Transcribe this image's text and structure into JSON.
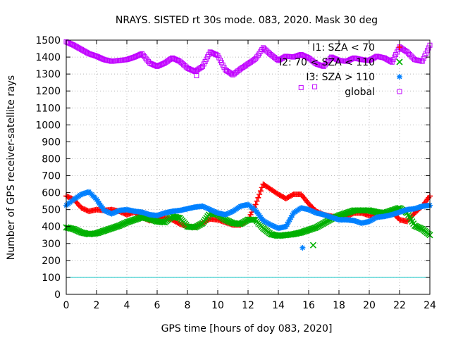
{
  "chart_data": {
    "type": "scatter",
    "title": "NRAYS. SISTED rt 30s mode. 083, 2020. Mask 30 deg",
    "xlabel": "GPS time [hours of doy 083, 2020]",
    "ylabel": "Number of GPS receiver-satellite rays",
    "xlim": [
      0,
      24
    ],
    "ylim": [
      0,
      1500
    ],
    "xticks": [
      0,
      2,
      4,
      6,
      8,
      10,
      12,
      14,
      16,
      18,
      20,
      22,
      24
    ],
    "yticks": [
      0,
      100,
      200,
      300,
      400,
      500,
      600,
      700,
      800,
      900,
      1000,
      1100,
      1200,
      1300,
      1400,
      1500
    ],
    "grid": true,
    "legend_position": "top-right",
    "reference_line": {
      "y": 100,
      "color": "#00c0c0"
    },
    "series": [
      {
        "name": "I1: SZA < 70",
        "marker": "plus",
        "color": "#ff0000",
        "points": [
          [
            0,
            580
          ],
          [
            0.5,
            560
          ],
          [
            1,
            510
          ],
          [
            1.5,
            490
          ],
          [
            2,
            500
          ],
          [
            2.5,
            495
          ],
          [
            3,
            500
          ],
          [
            3.5,
            490
          ],
          [
            4,
            470
          ],
          [
            4.5,
            485
          ],
          [
            5,
            455
          ],
          [
            5.5,
            435
          ],
          [
            6,
            445
          ],
          [
            6.5,
            455
          ],
          [
            7,
            440
          ],
          [
            7.5,
            415
          ],
          [
            8,
            400
          ],
          [
            8.5,
            395
          ],
          [
            9,
            420
          ],
          [
            9.5,
            445
          ],
          [
            10,
            440
          ],
          [
            10.5,
            425
          ],
          [
            11,
            410
          ],
          [
            11.5,
            410
          ],
          [
            12,
            440
          ],
          [
            12.5,
            530
          ],
          [
            13,
            650
          ],
          [
            13.5,
            620
          ],
          [
            14,
            590
          ],
          [
            14.5,
            565
          ],
          [
            15,
            590
          ],
          [
            15.5,
            590
          ],
          [
            16,
            535
          ],
          [
            16.5,
            490
          ],
          [
            17,
            470
          ],
          [
            17.5,
            460
          ],
          [
            18,
            455
          ],
          [
            18.5,
            460
          ],
          [
            19,
            480
          ],
          [
            19.5,
            480
          ],
          [
            20,
            465
          ],
          [
            20.5,
            470
          ],
          [
            21,
            470
          ],
          [
            21.5,
            490
          ],
          [
            22,
            440
          ],
          [
            22.5,
            430
          ],
          [
            23,
            480
          ],
          [
            23.5,
            520
          ],
          [
            24,
            580
          ]
        ]
      },
      {
        "name": "I2: 70 < SZA < 110",
        "marker": "x",
        "color": "#00b000",
        "points": [
          [
            0,
            395
          ],
          [
            0.5,
            385
          ],
          [
            1,
            365
          ],
          [
            1.5,
            355
          ],
          [
            2,
            360
          ],
          [
            2.5,
            375
          ],
          [
            3,
            390
          ],
          [
            3.5,
            405
          ],
          [
            4,
            425
          ],
          [
            4.5,
            440
          ],
          [
            5,
            455
          ],
          [
            5.5,
            445
          ],
          [
            6,
            430
          ],
          [
            6.5,
            425
          ],
          [
            7,
            460
          ],
          [
            7.5,
            450
          ],
          [
            8,
            400
          ],
          [
            8.5,
            395
          ],
          [
            9,
            420
          ],
          [
            9.5,
            480
          ],
          [
            10,
            470
          ],
          [
            10.5,
            440
          ],
          [
            11,
            420
          ],
          [
            11.5,
            415
          ],
          [
            12,
            440
          ],
          [
            12.5,
            440
          ],
          [
            13,
            390
          ],
          [
            13.5,
            355
          ],
          [
            14,
            345
          ],
          [
            14.5,
            350
          ],
          [
            15,
            355
          ],
          [
            15.5,
            365
          ],
          [
            16,
            380
          ],
          [
            16.5,
            395
          ],
          [
            17,
            420
          ],
          [
            17.5,
            445
          ],
          [
            18,
            465
          ],
          [
            18.5,
            480
          ],
          [
            19,
            495
          ],
          [
            19.5,
            495
          ],
          [
            20,
            495
          ],
          [
            20.5,
            485
          ],
          [
            21,
            480
          ],
          [
            21.5,
            495
          ],
          [
            22,
            510
          ],
          [
            22.5,
            480
          ],
          [
            23,
            405
          ],
          [
            23.5,
            385
          ],
          [
            24,
            350
          ]
        ]
      },
      {
        "name": "I3: SZA > 110",
        "marker": "star",
        "color": "#0080ff",
        "points": [
          [
            0,
            525
          ],
          [
            0.5,
            560
          ],
          [
            1,
            590
          ],
          [
            1.5,
            605
          ],
          [
            2,
            560
          ],
          [
            2.5,
            495
          ],
          [
            3,
            475
          ],
          [
            3.5,
            495
          ],
          [
            4,
            500
          ],
          [
            4.5,
            490
          ],
          [
            5,
            485
          ],
          [
            5.5,
            470
          ],
          [
            6,
            465
          ],
          [
            6.5,
            480
          ],
          [
            7,
            490
          ],
          [
            7.5,
            495
          ],
          [
            8,
            505
          ],
          [
            8.5,
            515
          ],
          [
            9,
            520
          ],
          [
            9.5,
            500
          ],
          [
            10,
            480
          ],
          [
            10.5,
            470
          ],
          [
            11,
            490
          ],
          [
            11.5,
            520
          ],
          [
            12,
            530
          ],
          [
            12.5,
            495
          ],
          [
            13,
            435
          ],
          [
            13.5,
            410
          ],
          [
            14,
            390
          ],
          [
            14.5,
            400
          ],
          [
            15,
            480
          ],
          [
            15.5,
            510
          ],
          [
            16,
            500
          ],
          [
            16.5,
            480
          ],
          [
            17,
            470
          ],
          [
            17.5,
            455
          ],
          [
            18,
            440
          ],
          [
            18.5,
            440
          ],
          [
            19,
            435
          ],
          [
            19.5,
            420
          ],
          [
            20,
            430
          ],
          [
            20.5,
            455
          ],
          [
            21,
            460
          ],
          [
            21.5,
            470
          ],
          [
            22,
            485
          ],
          [
            22.5,
            500
          ],
          [
            23,
            505
          ],
          [
            23.5,
            520
          ],
          [
            24,
            525
          ]
        ]
      },
      {
        "name": "global",
        "marker": "square",
        "color": "#c000ff",
        "points": [
          [
            0,
            1490
          ],
          [
            0.5,
            1470
          ],
          [
            1,
            1445
          ],
          [
            1.5,
            1420
          ],
          [
            2,
            1405
          ],
          [
            2.5,
            1385
          ],
          [
            3,
            1375
          ],
          [
            3.5,
            1380
          ],
          [
            4,
            1385
          ],
          [
            4.5,
            1400
          ],
          [
            5,
            1420
          ],
          [
            5.5,
            1365
          ],
          [
            6,
            1345
          ],
          [
            6.5,
            1365
          ],
          [
            7,
            1395
          ],
          [
            7.5,
            1375
          ],
          [
            8,
            1335
          ],
          [
            8.5,
            1315
          ],
          [
            9,
            1345
          ],
          [
            9.5,
            1430
          ],
          [
            10,
            1410
          ],
          [
            10.5,
            1325
          ],
          [
            11,
            1295
          ],
          [
            11.5,
            1330
          ],
          [
            12,
            1360
          ],
          [
            12.5,
            1390
          ],
          [
            13,
            1455
          ],
          [
            13.5,
            1415
          ],
          [
            14,
            1380
          ],
          [
            14.5,
            1405
          ],
          [
            15,
            1400
          ],
          [
            15.5,
            1415
          ],
          [
            16,
            1395
          ],
          [
            16.5,
            1360
          ],
          [
            17,
            1345
          ],
          [
            17.5,
            1400
          ],
          [
            18,
            1380
          ],
          [
            18.5,
            1375
          ],
          [
            19,
            1395
          ],
          [
            19.5,
            1385
          ],
          [
            20,
            1380
          ],
          [
            20.5,
            1405
          ],
          [
            21,
            1395
          ],
          [
            21.5,
            1370
          ],
          [
            22,
            1460
          ],
          [
            22.5,
            1430
          ],
          [
            23,
            1385
          ],
          [
            23.5,
            1375
          ],
          [
            24,
            1470
          ]
        ]
      }
    ],
    "outliers": [
      {
        "series": "I3: SZA > 110",
        "x": 15.6,
        "y": 275
      },
      {
        "series": "I2: 70 < SZA < 110",
        "x": 16.3,
        "y": 290
      },
      {
        "series": "global",
        "x": 15.5,
        "y": 1220
      },
      {
        "series": "global",
        "x": 16.4,
        "y": 1225
      },
      {
        "series": "global",
        "x": 8.6,
        "y": 1290
      }
    ]
  }
}
